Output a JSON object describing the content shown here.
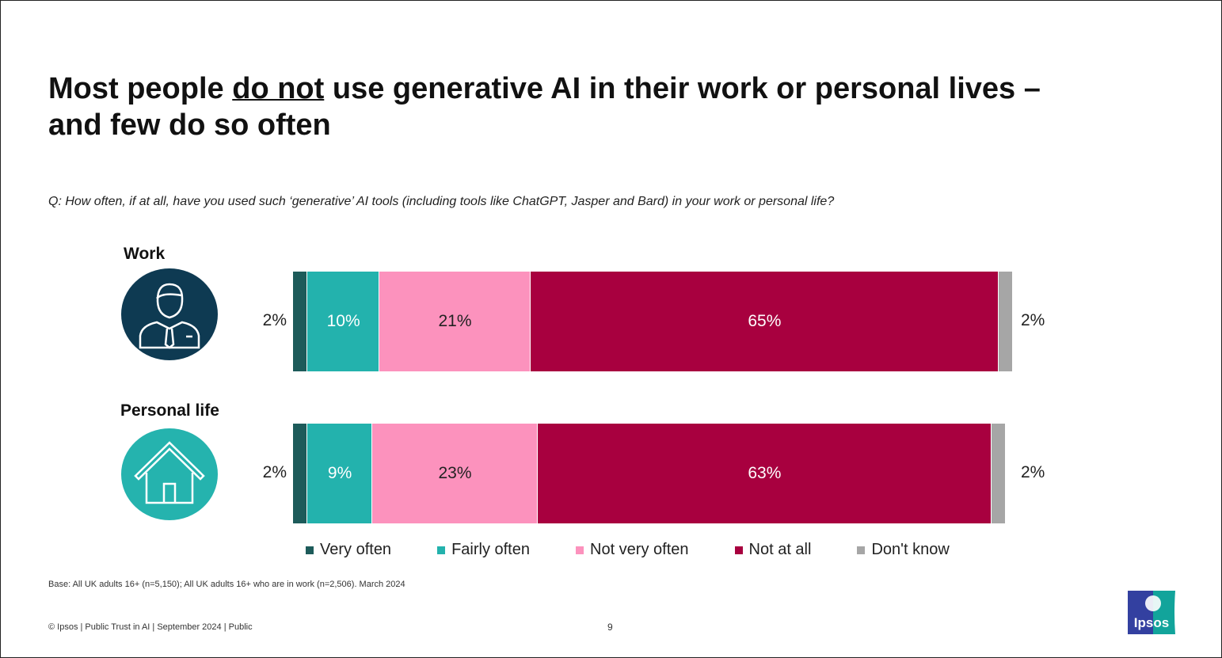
{
  "title": {
    "part1": "Most people ",
    "underlined": "do not",
    "part2": " use generative AI in their work or personal lives –",
    "line2": "and few do so often"
  },
  "question": "Q: How often, if at all, have you used such ‘generative’ AI tools (including tools like ChatGPT, Jasper and Bard) in your work or personal life?",
  "chart_data": {
    "type": "bar",
    "orientation": "horizontal-stacked-100",
    "categories": [
      "Work",
      "Personal life"
    ],
    "series": [
      {
        "name": "Very often",
        "color": "#1d5b5a",
        "values": [
          2,
          2
        ],
        "labels": [
          "2%",
          "2%"
        ]
      },
      {
        "name": "Fairly often",
        "color": "#23b2ad",
        "values": [
          10,
          9
        ],
        "labels": [
          "10%",
          "9%"
        ]
      },
      {
        "name": "Not very often",
        "color": "#fc92bd",
        "values": [
          21,
          23
        ],
        "labels": [
          "21%",
          "23%"
        ]
      },
      {
        "name": "Not at all",
        "color": "#a8003f",
        "values": [
          65,
          63
        ],
        "labels": [
          "65%",
          "63%"
        ]
      },
      {
        "name": "Don't know",
        "color": "#a6a6a6",
        "values": [
          2,
          2
        ],
        "labels": [
          "2%",
          "2%"
        ]
      }
    ],
    "legend_position": "bottom",
    "icons": [
      "businessman-icon",
      "house-icon"
    ],
    "icon_colors": [
      "#0e3a52",
      "#25b3ae"
    ]
  },
  "base": "Base: All UK adults 16+ (n=5,150); All UK adults 16+ who are in work (n=2,506). March 2024",
  "footer": "© Ipsos | Public Trust in AI | September 2024 | Public",
  "page_number": "9",
  "logo_text": "Ipsos"
}
